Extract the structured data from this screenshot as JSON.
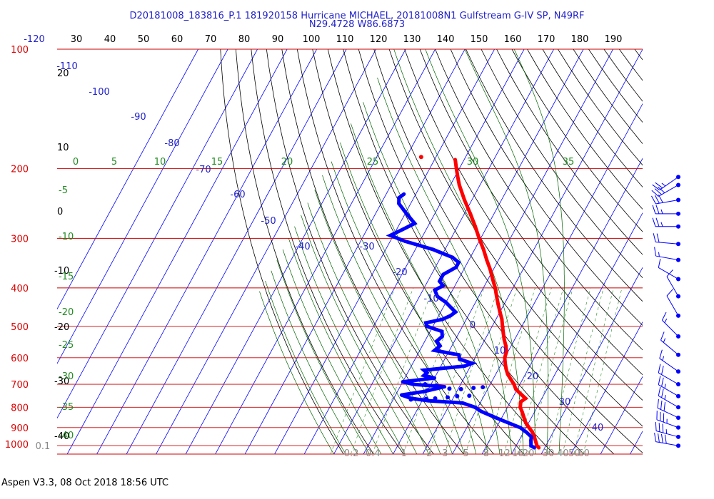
{
  "header": {
    "title_line1": "D20181008_183816_P.1 181920158 Hurricane MICHAEL, 20181008N1 Gulfstream G-IV SP, N49RF",
    "title_line2": "N29.4728 W86.6873"
  },
  "footer": {
    "text": "Aspen V3.3, 08 Oct 2018  18:56 UTC"
  },
  "colors": {
    "temperature": "#ff0000",
    "dewpoint": "#0000ff",
    "isobar": "#cc0000",
    "isotherm": "#0000ff",
    "dry_adiabat": "#000000",
    "moist_adiabat": "#006400",
    "mixing_ratio": "#228b22",
    "wind_barb": "#0000ff",
    "mixing_label": "#888888"
  },
  "chart_data": {
    "type": "line",
    "chart_kind": "Skew-T log-P",
    "top_axis_labels": [
      "-120",
      "30",
      "40",
      "50",
      "60",
      "70",
      "80",
      "90",
      "100",
      "110",
      "120",
      "130",
      "140",
      "150",
      "160",
      "170",
      "180",
      "190"
    ],
    "pressure_labels": [
      "100",
      "200",
      "300",
      "400",
      "500",
      "600",
      "700",
      "800",
      "900",
      "1000"
    ],
    "isotherm_labels": [
      "-110",
      "-100",
      "-90",
      "-80",
      "-70",
      "-60",
      "-50",
      "-40",
      "-30",
      "-20",
      "-10",
      "0",
      "10",
      "20",
      "30",
      "40"
    ],
    "dry_adiabat_labels": [
      "20",
      "10",
      "0",
      "-10",
      "-20",
      "-30",
      "-40"
    ],
    "moist_adiabat_labels": [
      "0",
      "5",
      "10",
      "15",
      "20",
      "25",
      "30",
      "35",
      "-5",
      "-10",
      "-15",
      "-20",
      "-25",
      "-30",
      "-35",
      "-40"
    ],
    "mixing_ratio_labels": [
      "0.1",
      "0.2",
      "0.4",
      "1",
      "2",
      "3",
      "5",
      "8",
      "12",
      "16",
      "20",
      "30",
      "40",
      "50",
      "60"
    ],
    "series": [
      {
        "key": "temperature",
        "points": [
          [
            1012,
            28
          ],
          [
            1000,
            27
          ],
          [
            950,
            24.5
          ],
          [
            925,
            23
          ],
          [
            900,
            21
          ],
          [
            875,
            19
          ],
          [
            850,
            17.5
          ],
          [
            825,
            16
          ],
          [
            800,
            14.3
          ],
          [
            775,
            13.5
          ],
          [
            760,
            14.5
          ],
          [
            740,
            12
          ],
          [
            720,
            9.5
          ],
          [
            700,
            8
          ],
          [
            680,
            6
          ],
          [
            660,
            4
          ],
          [
            640,
            2.5
          ],
          [
            620,
            1.2
          ],
          [
            600,
            0
          ],
          [
            580,
            -0.5
          ],
          [
            560,
            -1.8
          ],
          [
            540,
            -3.5
          ],
          [
            520,
            -5
          ],
          [
            500,
            -6.5
          ],
          [
            480,
            -8
          ],
          [
            460,
            -10
          ],
          [
            440,
            -12
          ],
          [
            420,
            -14
          ],
          [
            400,
            -16
          ],
          [
            380,
            -18.5
          ],
          [
            360,
            -21
          ],
          [
            340,
            -24
          ],
          [
            320,
            -27
          ],
          [
            300,
            -30.5
          ],
          [
            280,
            -34
          ],
          [
            260,
            -38
          ],
          [
            240,
            -42.5
          ],
          [
            220,
            -47
          ],
          [
            210,
            -49
          ],
          [
            200,
            -51
          ],
          [
            190,
            -53
          ]
        ],
        "isolated_points": [
          [
            187,
            -65
          ]
        ]
      },
      {
        "key": "dewpoint",
        "points": [
          [
            1012,
            26.5
          ],
          [
            1000,
            25
          ],
          [
            970,
            24
          ],
          [
            950,
            23.5
          ],
          [
            925,
            21
          ],
          [
            900,
            18
          ],
          [
            880,
            14
          ],
          [
            860,
            10
          ],
          [
            840,
            6
          ],
          [
            820,
            2
          ],
          [
            800,
            -1
          ],
          [
            780,
            -6
          ],
          [
            770,
            -18
          ],
          [
            760,
            -24
          ],
          [
            745,
            -28
          ],
          [
            730,
            -21
          ],
          [
            710,
            -15
          ],
          [
            700,
            -26
          ],
          [
            690,
            -30
          ],
          [
            675,
            -20
          ],
          [
            665,
            -24
          ],
          [
            655,
            -23.5
          ],
          [
            645,
            -25
          ],
          [
            630,
            -12
          ],
          [
            620,
            -10
          ],
          [
            605,
            -15
          ],
          [
            590,
            -16
          ],
          [
            575,
            -25
          ],
          [
            560,
            -24
          ],
          [
            545,
            -26
          ],
          [
            530,
            -25
          ],
          [
            515,
            -26
          ],
          [
            500,
            -32
          ],
          [
            490,
            -33
          ],
          [
            480,
            -28
          ],
          [
            470,
            -26
          ],
          [
            460,
            -25
          ],
          [
            450,
            -27
          ],
          [
            435,
            -30
          ],
          [
            420,
            -34
          ],
          [
            405,
            -36
          ],
          [
            395,
            -34
          ],
          [
            385,
            -36
          ],
          [
            370,
            -36
          ],
          [
            355,
            -33
          ],
          [
            345,
            -33
          ],
          [
            335,
            -36
          ],
          [
            320,
            -44
          ],
          [
            305,
            -55
          ],
          [
            295,
            -61
          ],
          [
            285,
            -58
          ],
          [
            275,
            -55
          ],
          [
            265,
            -58
          ],
          [
            255,
            -61
          ],
          [
            245,
            -64
          ],
          [
            237,
            -65
          ],
          [
            232,
            -64
          ]
        ],
        "scattered_points": [
          [
            760,
            -16
          ],
          [
            755,
            -12
          ],
          [
            750,
            -9
          ],
          [
            748,
            -5
          ],
          [
            762,
            -19
          ],
          [
            765,
            -24
          ],
          [
            720,
            -9
          ],
          [
            715,
            -5
          ],
          [
            712,
            -2
          ],
          [
            718,
            -13
          ],
          [
            725,
            -20
          ],
          [
            700,
            -22
          ],
          [
            705,
            -18
          ]
        ]
      }
    ],
    "wind_barbs": [
      {
        "p": 210,
        "dir": 235,
        "spd": 25
      },
      {
        "p": 220,
        "dir": 240,
        "spd": 30
      },
      {
        "p": 240,
        "dir": 260,
        "spd": 30
      },
      {
        "p": 260,
        "dir": 270,
        "spd": 25
      },
      {
        "p": 280,
        "dir": 270,
        "spd": 25
      },
      {
        "p": 310,
        "dir": 275,
        "spd": 20
      },
      {
        "p": 340,
        "dir": 280,
        "spd": 15
      },
      {
        "p": 380,
        "dir": 300,
        "spd": 10
      },
      {
        "p": 420,
        "dir": 330,
        "spd": 10
      },
      {
        "p": 470,
        "dir": 330,
        "spd": 10
      },
      {
        "p": 530,
        "dir": 315,
        "spd": 15
      },
      {
        "p": 590,
        "dir": 310,
        "spd": 15
      },
      {
        "p": 650,
        "dir": 305,
        "spd": 15
      },
      {
        "p": 700,
        "dir": 300,
        "spd": 20
      },
      {
        "p": 750,
        "dir": 300,
        "spd": 25
      },
      {
        "p": 800,
        "dir": 300,
        "spd": 25
      },
      {
        "p": 850,
        "dir": 295,
        "spd": 30
      },
      {
        "p": 900,
        "dir": 290,
        "spd": 35
      },
      {
        "p": 950,
        "dir": 285,
        "spd": 35
      },
      {
        "p": 1000,
        "dir": 280,
        "spd": 40
      }
    ]
  }
}
